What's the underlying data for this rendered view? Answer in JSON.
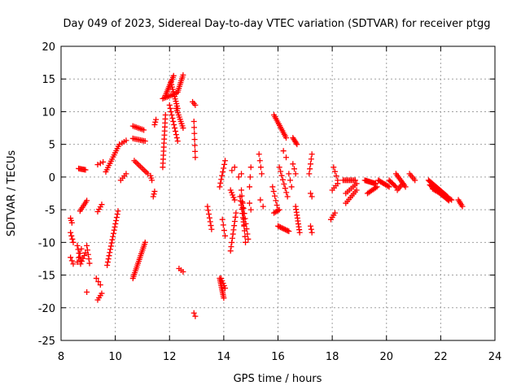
{
  "chart_data": {
    "type": "scatter",
    "title": "Day 049 of 2023, Sidereal Day-to-day VTEC variation (SDTVAR) for receiver ptgg",
    "xlabel": "GPS time / hours",
    "ylabel": "SDTVAR / TECUs",
    "xlim": [
      8,
      24
    ],
    "ylim": [
      -25,
      20
    ],
    "grid": true,
    "marker": "+",
    "marker_color": "#ff0000",
    "x_ticks": [
      8,
      10,
      12,
      14,
      16,
      18,
      20,
      22,
      24
    ],
    "x_tick_labels": [
      "8",
      "10",
      "12",
      "14",
      "16",
      "18",
      "20",
      "22",
      "24"
    ],
    "y_ticks": [
      -25,
      -20,
      -15,
      -10,
      -5,
      0,
      5,
      10,
      15,
      20
    ],
    "y_tick_labels": [
      "-25",
      "-20",
      "-15",
      "-10",
      "-5",
      "0",
      "5",
      "10",
      "15",
      "20"
    ],
    "segments": [
      {
        "x0": 8.35,
        "x1": 8.4,
        "y0": -6.3,
        "y1": -7.0,
        "n": 3
      },
      {
        "x0": 8.35,
        "x1": 8.45,
        "y0": -8.5,
        "y1": -10.0,
        "n": 4
      },
      {
        "x0": 8.35,
        "x1": 8.45,
        "y0": -12.3,
        "y1": -13.3,
        "n": 3
      },
      {
        "x0": 8.65,
        "x1": 8.9,
        "y0": 1.3,
        "y1": 1.1,
        "n": 7
      },
      {
        "x0": 8.7,
        "x1": 8.95,
        "y0": -5.2,
        "y1": -3.6,
        "n": 7
      },
      {
        "x0": 8.6,
        "x1": 8.72,
        "y0": -10.5,
        "y1": -12.8,
        "n": 5
      },
      {
        "x0": 8.72,
        "x1": 8.9,
        "y0": -13.3,
        "y1": -11.6,
        "n": 5
      },
      {
        "x0": 8.6,
        "x1": 8.75,
        "y0": -13.0,
        "y1": -11.0,
        "n": 4
      },
      {
        "x0": 8.95,
        "x1": 9.05,
        "y0": -10.5,
        "y1": -13.2,
        "n": 5
      },
      {
        "x0": 8.95,
        "x1": 8.95,
        "y0": -17.6,
        "y1": -17.6,
        "n": 1
      },
      {
        "x0": 9.3,
        "x1": 9.45,
        "y0": -15.5,
        "y1": -16.5,
        "n": 3
      },
      {
        "x0": 9.35,
        "x1": 9.5,
        "y0": -18.8,
        "y1": -17.8,
        "n": 4
      },
      {
        "x0": 9.35,
        "x1": 9.5,
        "y0": -5.3,
        "y1": -4.2,
        "n": 4
      },
      {
        "x0": 9.35,
        "x1": 9.55,
        "y0": 1.9,
        "y1": 2.3,
        "n": 3
      },
      {
        "x0": 9.65,
        "x1": 10.15,
        "y0": 0.8,
        "y1": 5.0,
        "n": 14
      },
      {
        "x0": 9.7,
        "x1": 10.1,
        "y0": -13.5,
        "y1": -5.2,
        "n": 18
      },
      {
        "x0": 10.2,
        "x1": 10.4,
        "y0": -0.5,
        "y1": 0.5,
        "n": 4
      },
      {
        "x0": 10.25,
        "x1": 10.4,
        "y0": 5.2,
        "y1": 5.6,
        "n": 3
      },
      {
        "x0": 10.65,
        "x1": 11.05,
        "y0": 7.8,
        "y1": 7.2,
        "n": 8
      },
      {
        "x0": 10.65,
        "x1": 11.1,
        "y0": 5.9,
        "y1": 5.5,
        "n": 9
      },
      {
        "x0": 10.7,
        "x1": 11.2,
        "y0": 2.5,
        "y1": 0.5,
        "n": 10
      },
      {
        "x0": 10.65,
        "x1": 11.1,
        "y0": -15.5,
        "y1": -10.0,
        "n": 20
      },
      {
        "x0": 11.3,
        "x1": 11.35,
        "y0": 0.2,
        "y1": -0.5,
        "n": 3
      },
      {
        "x0": 11.4,
        "x1": 11.45,
        "y0": -3.0,
        "y1": -2.2,
        "n": 3
      },
      {
        "x0": 11.45,
        "x1": 11.5,
        "y0": 8.0,
        "y1": 8.8,
        "n": 3
      },
      {
        "x0": 11.75,
        "x1": 11.85,
        "y0": 1.5,
        "y1": 9.5,
        "n": 14
      },
      {
        "x0": 11.75,
        "x1": 12.25,
        "y0": 12.0,
        "y1": 12.8,
        "n": 10
      },
      {
        "x0": 11.85,
        "x1": 12.15,
        "y0": 12.5,
        "y1": 15.5,
        "n": 12
      },
      {
        "x0": 12.05,
        "x1": 12.3,
        "y0": 14.5,
        "y1": 10.5,
        "n": 12
      },
      {
        "x0": 12.0,
        "x1": 12.3,
        "y0": 11.0,
        "y1": 5.5,
        "n": 12
      },
      {
        "x0": 12.25,
        "x1": 12.5,
        "y0": 10.5,
        "y1": 7.5,
        "n": 10
      },
      {
        "x0": 12.3,
        "x1": 12.5,
        "y0": 13.0,
        "y1": 15.6,
        "n": 10
      },
      {
        "x0": 12.35,
        "x1": 12.5,
        "y0": -14.0,
        "y1": -14.5,
        "n": 3
      },
      {
        "x0": 12.85,
        "x1": 12.95,
        "y0": 11.5,
        "y1": 11.0,
        "n": 3
      },
      {
        "x0": 12.9,
        "x1": 12.95,
        "y0": 8.5,
        "y1": 3.0,
        "n": 7
      },
      {
        "x0": 12.9,
        "x1": 12.95,
        "y0": -20.8,
        "y1": -21.3,
        "n": 2
      },
      {
        "x0": 13.4,
        "x1": 13.55,
        "y0": -4.5,
        "y1": -8.0,
        "n": 7
      },
      {
        "x0": 13.85,
        "x1": 14.05,
        "y0": -1.5,
        "y1": 2.5,
        "n": 8
      },
      {
        "x0": 13.85,
        "x1": 14.0,
        "y0": -15.5,
        "y1": -18.5,
        "n": 12
      },
      {
        "x0": 13.9,
        "x1": 14.05,
        "y0": -15.5,
        "y1": -17.0,
        "n": 5
      },
      {
        "x0": 13.95,
        "x1": 14.05,
        "y0": -6.5,
        "y1": -9.0,
        "n": 4
      },
      {
        "x0": 14.25,
        "x1": 14.4,
        "y0": -2.0,
        "y1": -3.5,
        "n": 5
      },
      {
        "x0": 14.3,
        "x1": 14.4,
        "y0": 1.0,
        "y1": 1.5,
        "n": 2
      },
      {
        "x0": 14.25,
        "x1": 14.45,
        "y0": -11.3,
        "y1": -5.5,
        "n": 10
      },
      {
        "x0": 14.55,
        "x1": 14.65,
        "y0": 0.0,
        "y1": 0.5,
        "n": 2
      },
      {
        "x0": 14.6,
        "x1": 14.75,
        "y0": -3.0,
        "y1": -7.5,
        "n": 8
      },
      {
        "x0": 14.65,
        "x1": 14.8,
        "y0": -2.0,
        "y1": -10.0,
        "n": 10
      },
      {
        "x0": 14.7,
        "x1": 14.9,
        "y0": -4.0,
        "y1": -9.5,
        "n": 8
      },
      {
        "x0": 14.95,
        "x1": 15.0,
        "y0": -4.0,
        "y1": -5.0,
        "n": 2
      },
      {
        "x0": 14.95,
        "x1": 15.0,
        "y0": -1.5,
        "y1": 1.5,
        "n": 3
      },
      {
        "x0": 15.3,
        "x1": 15.4,
        "y0": 3.5,
        "y1": 0.5,
        "n": 4
      },
      {
        "x0": 15.35,
        "x1": 15.45,
        "y0": -3.5,
        "y1": -4.5,
        "n": 2
      },
      {
        "x0": 15.85,
        "x1": 16.3,
        "y0": 9.5,
        "y1": 6.0,
        "n": 14
      },
      {
        "x0": 15.8,
        "x1": 16.0,
        "y0": -1.5,
        "y1": -5.0,
        "n": 6
      },
      {
        "x0": 15.85,
        "x1": 16.05,
        "y0": -5.5,
        "y1": -5.0,
        "n": 5
      },
      {
        "x0": 16.0,
        "x1": 16.4,
        "y0": -7.5,
        "y1": -8.3,
        "n": 10
      },
      {
        "x0": 16.05,
        "x1": 16.35,
        "y0": 1.5,
        "y1": -3.0,
        "n": 8
      },
      {
        "x0": 16.2,
        "x1": 16.3,
        "y0": 4.0,
        "y1": 3.0,
        "n": 2
      },
      {
        "x0": 16.4,
        "x1": 16.5,
        "y0": 0.5,
        "y1": -1.5,
        "n": 3
      },
      {
        "x0": 16.55,
        "x1": 16.7,
        "y0": 6.0,
        "y1": 5.0,
        "n": 6
      },
      {
        "x0": 16.55,
        "x1": 16.65,
        "y0": 2.0,
        "y1": 0.5,
        "n": 3
      },
      {
        "x0": 16.65,
        "x1": 16.8,
        "y0": -4.5,
        "y1": -8.5,
        "n": 10
      },
      {
        "x0": 17.15,
        "x1": 17.25,
        "y0": 0.5,
        "y1": 3.5,
        "n": 5
      },
      {
        "x0": 17.2,
        "x1": 17.25,
        "y0": -2.5,
        "y1": -3.0,
        "n": 2
      },
      {
        "x0": 17.2,
        "x1": 17.25,
        "y0": -7.5,
        "y1": -8.5,
        "n": 3
      },
      {
        "x0": 17.95,
        "x1": 18.1,
        "y0": -6.5,
        "y1": -5.5,
        "n": 4
      },
      {
        "x0": 18.0,
        "x1": 18.2,
        "y0": -2.0,
        "y1": -1.0,
        "n": 4
      },
      {
        "x0": 18.05,
        "x1": 18.2,
        "y0": 1.5,
        "y1": -0.5,
        "n": 4
      },
      {
        "x0": 18.4,
        "x1": 18.85,
        "y0": -0.5,
        "y1": -0.5,
        "n": 10
      },
      {
        "x0": 18.5,
        "x1": 18.9,
        "y0": -4.0,
        "y1": -2.0,
        "n": 8
      },
      {
        "x0": 18.5,
        "x1": 18.9,
        "y0": -2.5,
        "y1": -1.0,
        "n": 7
      },
      {
        "x0": 19.2,
        "x1": 19.6,
        "y0": -0.5,
        "y1": -1.0,
        "n": 12
      },
      {
        "x0": 19.3,
        "x1": 19.65,
        "y0": -2.5,
        "y1": -1.5,
        "n": 8
      },
      {
        "x0": 19.7,
        "x1": 20.1,
        "y0": -0.5,
        "y1": -1.5,
        "n": 10
      },
      {
        "x0": 20.1,
        "x1": 20.35,
        "y0": -0.5,
        "y1": -1.5,
        "n": 7
      },
      {
        "x0": 20.35,
        "x1": 20.7,
        "y0": 0.5,
        "y1": -1.5,
        "n": 9
      },
      {
        "x0": 20.4,
        "x1": 20.6,
        "y0": -2.0,
        "y1": -1.0,
        "n": 5
      },
      {
        "x0": 20.85,
        "x1": 21.05,
        "y0": 0.5,
        "y1": -0.5,
        "n": 5
      },
      {
        "x0": 21.55,
        "x1": 22.25,
        "y0": -0.5,
        "y1": -3.0,
        "n": 20
      },
      {
        "x0": 21.6,
        "x1": 22.3,
        "y0": -1.2,
        "y1": -3.6,
        "n": 20
      },
      {
        "x0": 21.7,
        "x1": 22.4,
        "y0": -1.8,
        "y1": -3.5,
        "n": 16
      },
      {
        "x0": 22.65,
        "x1": 22.8,
        "y0": -3.5,
        "y1": -4.5,
        "n": 5
      }
    ]
  }
}
